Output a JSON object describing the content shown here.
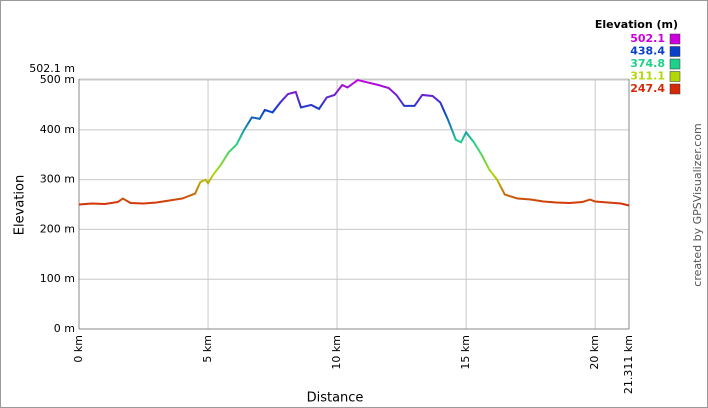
{
  "chart_data": {
    "type": "line",
    "x_label": "Distance",
    "y_label": "Elevation",
    "credit": "created by GPSVisualizer.com",
    "x": [
      0,
      0.5,
      1,
      1.5,
      1.7,
      2,
      2.5,
      3,
      3.5,
      4,
      4.5,
      4.7,
      4.9,
      5.0,
      5.2,
      5.5,
      5.8,
      6.1,
      6.4,
      6.7,
      7.0,
      7.2,
      7.5,
      7.8,
      8.1,
      8.4,
      8.6,
      9.0,
      9.3,
      9.6,
      9.9,
      10.2,
      10.4,
      10.8,
      11.2,
      11.6,
      12.0,
      12.3,
      12.6,
      13.0,
      13.3,
      13.7,
      14.0,
      14.3,
      14.6,
      14.8,
      15.0,
      15.3,
      15.6,
      15.9,
      16.2,
      16.5,
      17.0,
      17.5,
      18.0,
      18.5,
      19.0,
      19.5,
      19.8,
      20.0,
      20.5,
      21.0,
      21.311
    ],
    "values": [
      250,
      252,
      251,
      255,
      262,
      253,
      252,
      254,
      258,
      262,
      272,
      295,
      300,
      293,
      310,
      330,
      355,
      370,
      400,
      425,
      422,
      440,
      435,
      455,
      472,
      476,
      445,
      450,
      442,
      465,
      470,
      490,
      485,
      500,
      495,
      490,
      484,
      470,
      448,
      448,
      470,
      468,
      455,
      420,
      380,
      375,
      395,
      375,
      350,
      320,
      300,
      270,
      262,
      260,
      256,
      254,
      253,
      255,
      260,
      256,
      254,
      252,
      248
    ],
    "xlim": [
      0,
      21.311
    ],
    "xticks": [
      {
        "value": 0,
        "label": "0 km"
      },
      {
        "value": 5,
        "label": "5 km"
      },
      {
        "value": 10,
        "label": "10 km"
      },
      {
        "value": 15,
        "label": "15 km"
      },
      {
        "value": 20,
        "label": "20 km"
      },
      {
        "value": 21.311,
        "label": "21.311 km"
      }
    ],
    "ylim": [
      0,
      502.1
    ],
    "yticks": [
      {
        "value": 0,
        "label": "0 m"
      },
      {
        "value": 100,
        "label": "100 m"
      },
      {
        "value": 200,
        "label": "200 m"
      },
      {
        "value": 300,
        "label": "300 m"
      },
      {
        "value": 400,
        "label": "400 m"
      },
      {
        "value": 500,
        "label": "500 m"
      },
      {
        "value": 502.1,
        "label": "502.1 m"
      }
    ],
    "grid": true,
    "legend": {
      "title": "Elevation (m)",
      "entries": [
        {
          "value": 502.1,
          "color": "#cc00dd"
        },
        {
          "value": 438.4,
          "color": "#0a3fcc"
        },
        {
          "value": 374.8,
          "color": "#1fd08a"
        },
        {
          "value": 311.1,
          "color": "#b2d80a"
        },
        {
          "value": 247.4,
          "color": "#d42a0a"
        }
      ]
    }
  }
}
